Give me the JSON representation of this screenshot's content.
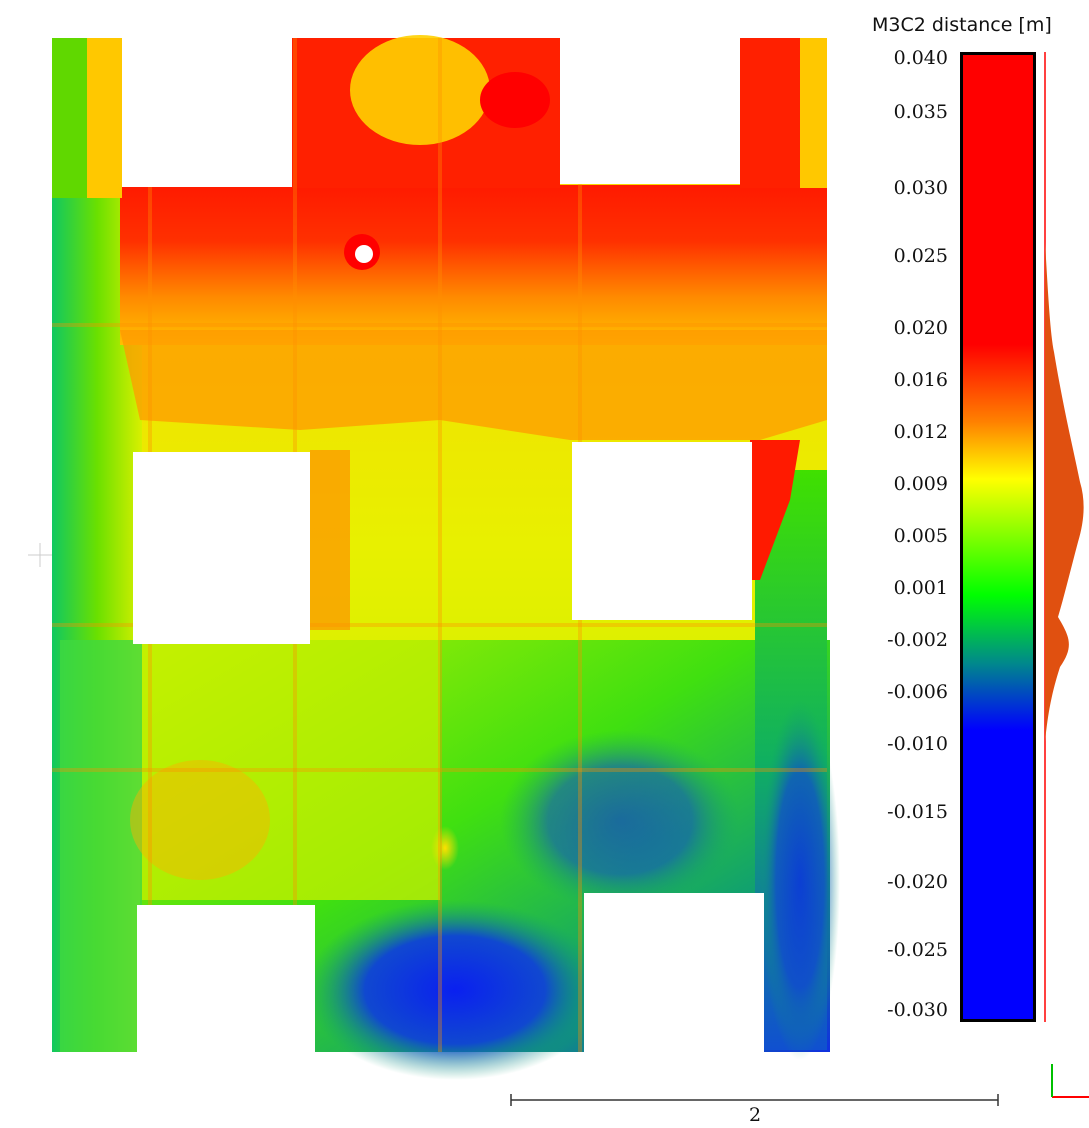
{
  "scale": {
    "title": "M3C2 distance [m]",
    "min": -0.03,
    "max": 0.04,
    "ticks": [
      {
        "label": "0.040",
        "value": 0.04
      },
      {
        "label": "0.035",
        "value": 0.035
      },
      {
        "label": "0.030",
        "value": 0.03
      },
      {
        "label": "0.025",
        "value": 0.025
      },
      {
        "label": "0.020",
        "value": 0.02
      },
      {
        "label": "0.016",
        "value": 0.016
      },
      {
        "label": "0.012",
        "value": 0.012
      },
      {
        "label": "0.009",
        "value": 0.009
      },
      {
        "label": "0.005",
        "value": 0.005
      },
      {
        "label": "0.001",
        "value": 0.001
      },
      {
        "label": "-0.002",
        "value": -0.002
      },
      {
        "label": "-0.006",
        "value": -0.006
      },
      {
        "label": "-0.010",
        "value": -0.01
      },
      {
        "label": "-0.015",
        "value": -0.015
      },
      {
        "label": "-0.020",
        "value": -0.02
      },
      {
        "label": "-0.025",
        "value": -0.025
      },
      {
        "label": "-0.030",
        "value": -0.03
      }
    ],
    "colors": {
      "high": "#ff0000",
      "mid_high": "#ffff00",
      "mid": "#00ff00",
      "mid_low": "#008a8a",
      "low": "#0000ff"
    }
  },
  "scale_bar": {
    "label": "2"
  },
  "axes_icon": {
    "x_color": "#ff0000",
    "y_color": "#00c000"
  }
}
